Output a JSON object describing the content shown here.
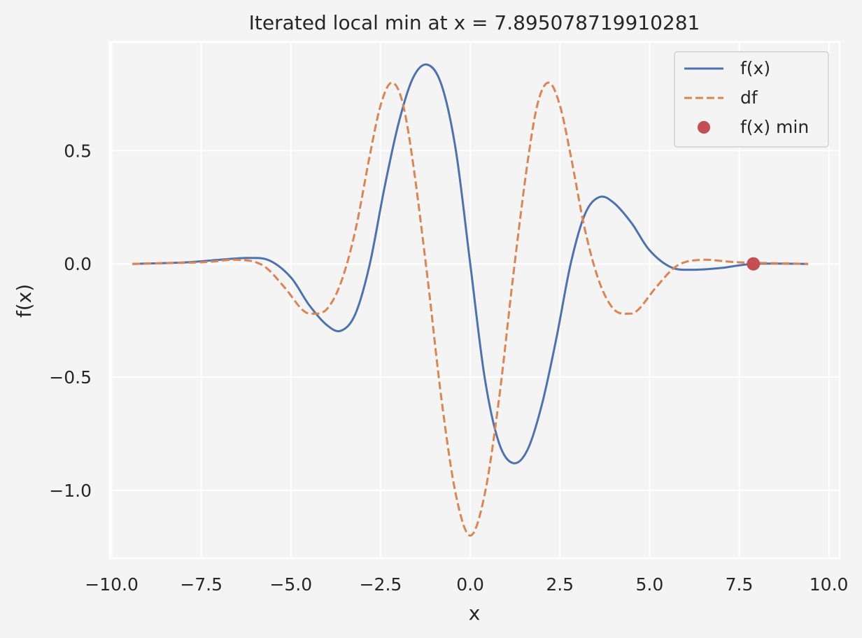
{
  "chart_data": {
    "type": "line",
    "title": "Iterated local min at x = 7.895078719910281",
    "xlabel": "x",
    "ylabel": "f(x)",
    "xlim": [
      -10.05,
      10.3
    ],
    "ylim": [
      -1.3,
      0.98
    ],
    "xticks": [
      -10.0,
      -7.5,
      -5.0,
      -2.5,
      0.0,
      2.5,
      5.0,
      7.5,
      10.0
    ],
    "xtick_labels": [
      "−10.0",
      "−7.5",
      "−5.0",
      "−2.5",
      "0.0",
      "2.5",
      "5.0",
      "7.5",
      "10.0"
    ],
    "yticks": [
      0.5,
      0.0,
      -0.5,
      -1.0
    ],
    "ytick_labels": [
      "0.5",
      "0.0",
      "−0.5",
      "−1.0"
    ],
    "grid": true,
    "legend_position": "top-right",
    "x_range": [
      -9.42,
      9.42
    ],
    "series": [
      {
        "name": "f(x)",
        "style": "solid",
        "color": "#4c72b0",
        "points": [
          [
            -9.42,
            0.0
          ],
          [
            -8.0,
            0.006
          ],
          [
            -7.0,
            0.018
          ],
          [
            -6.2,
            0.026
          ],
          [
            -5.6,
            0.015
          ],
          [
            -5.0,
            -0.06
          ],
          [
            -4.5,
            -0.18
          ],
          [
            -4.0,
            -0.27
          ],
          [
            -3.6,
            -0.295
          ],
          [
            -3.2,
            -0.22
          ],
          [
            -2.8,
            0.0
          ],
          [
            -2.4,
            0.33
          ],
          [
            -2.0,
            0.62
          ],
          [
            -1.6,
            0.82
          ],
          [
            -1.2,
            0.88
          ],
          [
            -0.8,
            0.79
          ],
          [
            -0.4,
            0.5
          ],
          [
            0.0,
            0.0
          ],
          [
            0.4,
            -0.5
          ],
          [
            0.8,
            -0.79
          ],
          [
            1.2,
            -0.88
          ],
          [
            1.6,
            -0.82
          ],
          [
            2.0,
            -0.62
          ],
          [
            2.4,
            -0.33
          ],
          [
            2.8,
            0.0
          ],
          [
            3.2,
            0.22
          ],
          [
            3.6,
            0.295
          ],
          [
            4.0,
            0.27
          ],
          [
            4.5,
            0.18
          ],
          [
            5.0,
            0.06
          ],
          [
            5.6,
            -0.015
          ],
          [
            6.2,
            -0.026
          ],
          [
            7.0,
            -0.018
          ],
          [
            7.9,
            0.0
          ],
          [
            9.42,
            0.0
          ]
        ]
      },
      {
        "name": "df",
        "style": "dashed",
        "color": "#dd8452",
        "points": [
          [
            -9.42,
            0.0
          ],
          [
            -7.5,
            0.007
          ],
          [
            -6.5,
            0.018
          ],
          [
            -5.8,
            -0.005
          ],
          [
            -5.2,
            -0.1
          ],
          [
            -4.7,
            -0.2
          ],
          [
            -4.4,
            -0.22
          ],
          [
            -4.0,
            -0.2
          ],
          [
            -3.6,
            -0.08
          ],
          [
            -3.2,
            0.15
          ],
          [
            -2.8,
            0.48
          ],
          [
            -2.5,
            0.7
          ],
          [
            -2.2,
            0.8
          ],
          [
            -1.9,
            0.72
          ],
          [
            -1.6,
            0.45
          ],
          [
            -1.2,
            -0.05
          ],
          [
            -0.8,
            -0.6
          ],
          [
            -0.4,
            -1.02
          ],
          [
            0.0,
            -1.2
          ],
          [
            0.4,
            -1.02
          ],
          [
            0.8,
            -0.6
          ],
          [
            1.2,
            -0.05
          ],
          [
            1.6,
            0.45
          ],
          [
            1.9,
            0.72
          ],
          [
            2.2,
            0.8
          ],
          [
            2.5,
            0.7
          ],
          [
            2.8,
            0.48
          ],
          [
            3.2,
            0.15
          ],
          [
            3.6,
            -0.08
          ],
          [
            4.0,
            -0.2
          ],
          [
            4.4,
            -0.22
          ],
          [
            4.7,
            -0.2
          ],
          [
            5.2,
            -0.1
          ],
          [
            5.8,
            -0.005
          ],
          [
            6.5,
            0.018
          ],
          [
            7.5,
            0.007
          ],
          [
            9.42,
            0.0
          ]
        ]
      },
      {
        "name": "f(x) min",
        "style": "marker",
        "color": "#c44e52",
        "points": [
          [
            7.895078719910281,
            0.0
          ]
        ]
      }
    ]
  }
}
